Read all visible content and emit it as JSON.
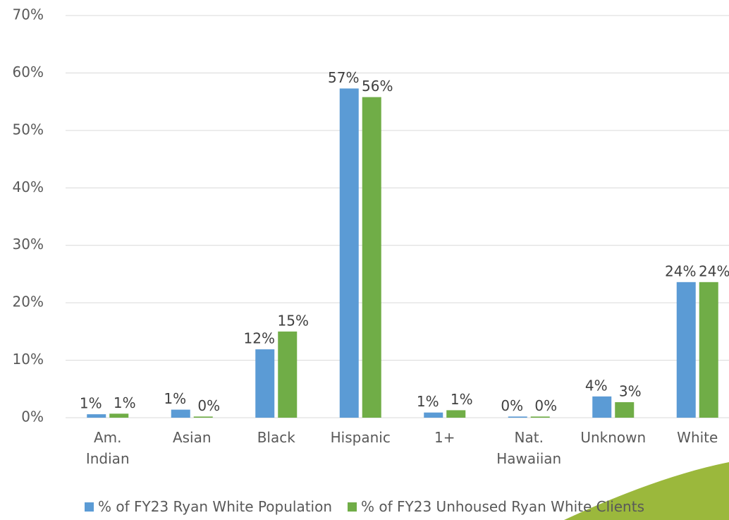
{
  "chart_data": {
    "type": "bar",
    "categories": [
      "Am. Indian",
      "Asian",
      "Black",
      "Hispanic",
      "1+",
      "Nat. Hawaiian",
      "Unknown",
      "White"
    ],
    "series": [
      {
        "name": "% of FY23 Ryan White Population",
        "color": "#5b9bd5",
        "values": [
          0.6,
          1.4,
          11.9,
          57.3,
          0.9,
          0.2,
          3.7,
          23.6
        ],
        "value_labels": [
          "1%",
          "1%",
          "12%",
          "57%",
          "1%",
          "0%",
          "4%",
          "24%"
        ]
      },
      {
        "name": "% of FY23 Unhoused Ryan White Clients",
        "color": "#70ad47",
        "values": [
          0.7,
          0.2,
          15.0,
          55.8,
          1.3,
          0.2,
          2.7,
          23.6
        ],
        "value_labels": [
          "1%",
          "0%",
          "15%",
          "56%",
          "1%",
          "0%",
          "3%",
          "24%"
        ]
      }
    ],
    "ylim": [
      0,
      70
    ],
    "yticks": [
      {
        "value": 0,
        "label": "0%"
      },
      {
        "value": 10,
        "label": "10%"
      },
      {
        "value": 20,
        "label": "20%"
      },
      {
        "value": 30,
        "label": "30%"
      },
      {
        "value": 40,
        "label": "40%"
      },
      {
        "value": 50,
        "label": "50%"
      },
      {
        "value": 60,
        "label": "60%"
      },
      {
        "value": 70,
        "label": "70%"
      }
    ],
    "grid": true,
    "legend": "bottom"
  }
}
